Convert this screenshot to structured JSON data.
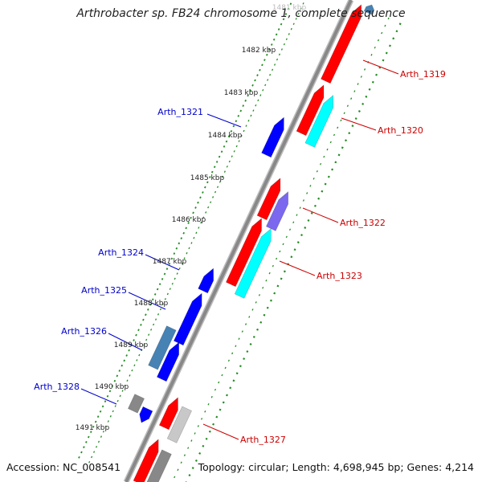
{
  "title": "Arthrobacter sp. FB24 chromosome 1, complete sequence",
  "accession": "Accession: NC_008541",
  "stats": "Topology: circular; Length: 4,698,945 bp; Genes: 4,214",
  "colors": {
    "forward_cds": "#ff0000",
    "reverse_cds": "#0000ff",
    "hypothetical_cyan": "#00ffff",
    "purple": "#7b68ee",
    "steelblue": "#4682b4",
    "gray": "#888888",
    "backbone": "#888888",
    "ticks": "#228b22",
    "label_forward": "#cc0000",
    "label_reverse": "#0000cc"
  },
  "scale_labels": [
    "1481 kbp",
    "1482 kbp",
    "1483 kbp",
    "1484 kbp",
    "1485 kbp",
    "1486 kbp",
    "1487 kbp",
    "1488 kbp",
    "1489 kbp",
    "1490 kbp",
    "1491 kbp"
  ],
  "gene_labels": [
    {
      "text": "Arth_1319",
      "strand": "forward"
    },
    {
      "text": "Arth_1320",
      "strand": "forward"
    },
    {
      "text": "Arth_1321",
      "strand": "reverse"
    },
    {
      "text": "Arth_1322",
      "strand": "forward"
    },
    {
      "text": "Arth_1323",
      "strand": "forward"
    },
    {
      "text": "Arth_1324",
      "strand": "reverse"
    },
    {
      "text": "Arth_1325",
      "strand": "reverse"
    },
    {
      "text": "Arth_1326",
      "strand": "reverse"
    },
    {
      "text": "Arth_1327",
      "strand": "forward"
    },
    {
      "text": "Arth_1328",
      "strand": "reverse"
    }
  ]
}
